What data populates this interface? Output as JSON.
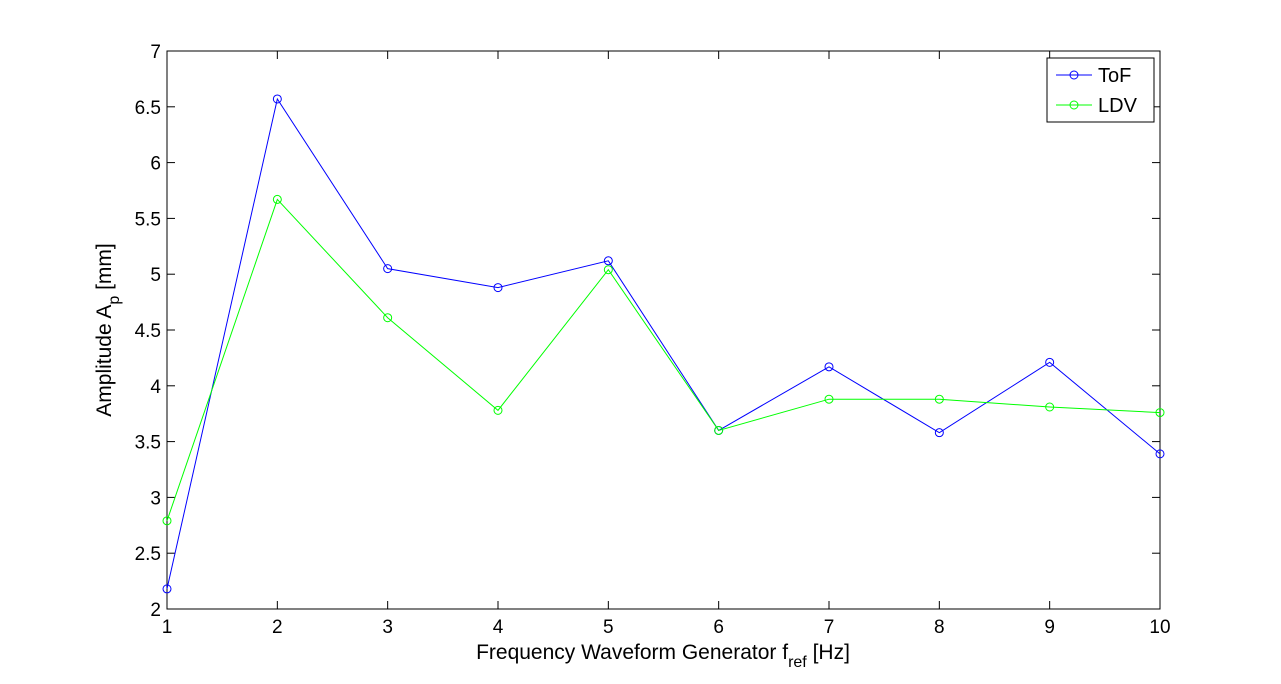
{
  "chart_data": {
    "type": "line",
    "x": [
      1,
      2,
      3,
      4,
      5,
      6,
      7,
      8,
      9,
      10
    ],
    "series": [
      {
        "name": "ToF",
        "color": "#0000ff",
        "marker": "circle",
        "values": [
          2.18,
          6.57,
          5.05,
          4.88,
          5.12,
          3.6,
          4.17,
          3.58,
          4.21,
          3.39
        ]
      },
      {
        "name": "LDV",
        "color": "#00ff00",
        "marker": "circle",
        "values": [
          2.79,
          5.67,
          4.61,
          3.78,
          5.04,
          3.6,
          3.88,
          3.88,
          3.81,
          3.76
        ]
      }
    ],
    "xlabel": {
      "main": "Frequency Waveform Generator f",
      "sub": "ref",
      "unit": " [Hz]"
    },
    "ylabel": {
      "main": "Amplitude A",
      "sub": "p",
      "unit": " [mm]"
    },
    "xlim": [
      1,
      10
    ],
    "ylim": [
      2,
      7
    ],
    "xticks": [
      1,
      2,
      3,
      4,
      5,
      6,
      7,
      8,
      9,
      10
    ],
    "yticks": [
      2,
      2.5,
      3,
      3.5,
      4,
      4.5,
      5,
      5.5,
      6,
      6.5,
      7
    ],
    "grid": false,
    "legend_position": "top-right"
  }
}
